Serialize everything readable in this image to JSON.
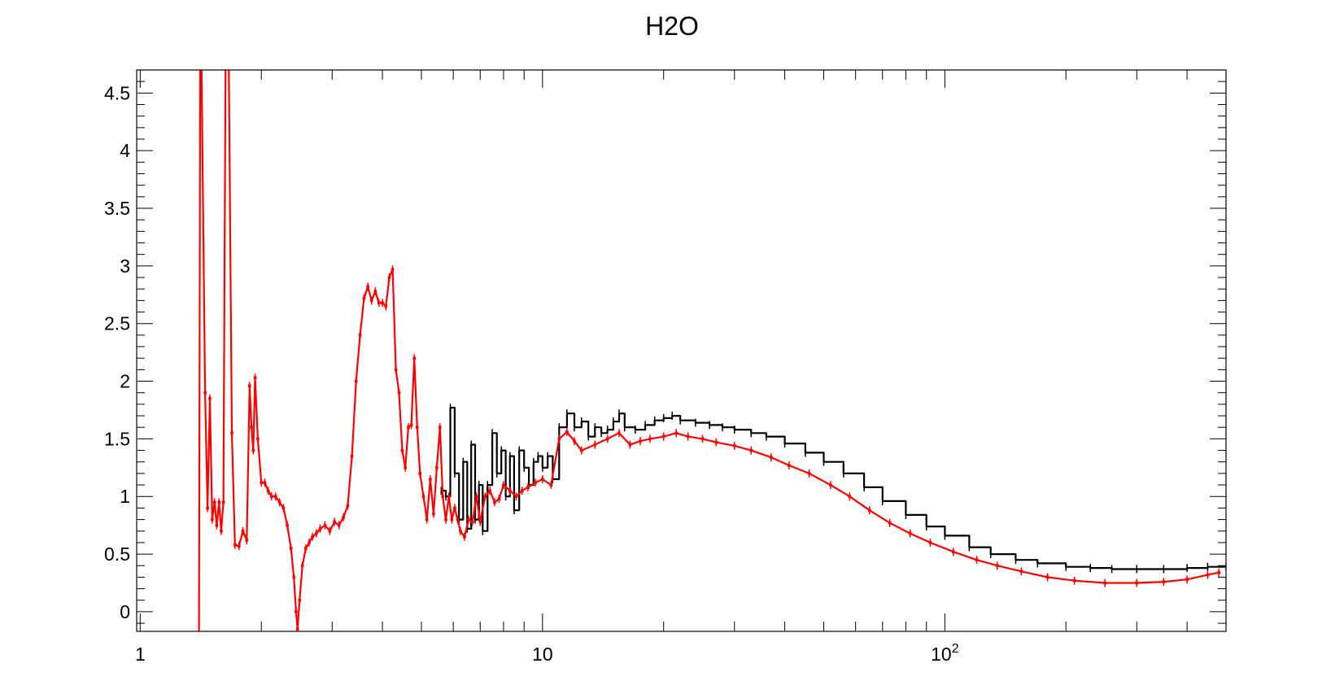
{
  "chart_data": {
    "type": "line",
    "title": "H2O",
    "xlabel": "",
    "ylabel": "",
    "xscale": "log",
    "xlim": [
      0.98,
      500
    ],
    "ylim": [
      -0.17,
      4.7
    ],
    "grid": false,
    "x_tick_labels": [
      {
        "value": 1,
        "base": "1",
        "exp": ""
      },
      {
        "value": 10,
        "base": "10",
        "exp": ""
      },
      {
        "value": 100,
        "base": "10",
        "exp": "2"
      }
    ],
    "y_ticks": [
      0,
      0.5,
      1,
      1.5,
      2,
      2.5,
      3,
      3.5,
      4,
      4.5
    ],
    "y_tick_labels": [
      "0",
      "0.5",
      "1",
      "1.5",
      "2",
      "2.5",
      "3",
      "3.5",
      "4",
      "4.5"
    ],
    "series": [
      {
        "color": "#000000",
        "style": "step",
        "points": [
          [
            5.6,
            1.05
          ],
          [
            5.75,
            1.0
          ],
          [
            5.9,
            1.77
          ],
          [
            6.05,
            1.2
          ],
          [
            6.2,
            0.8
          ],
          [
            6.35,
            1.3
          ],
          [
            6.5,
            0.72
          ],
          [
            6.65,
            1.45
          ],
          [
            6.8,
            0.8
          ],
          [
            6.95,
            1.1
          ],
          [
            7.1,
            0.7
          ],
          [
            7.3,
            1.1
          ],
          [
            7.5,
            1.55
          ],
          [
            7.7,
            1.2
          ],
          [
            7.9,
            1.4
          ],
          [
            8.1,
            1.0
          ],
          [
            8.3,
            1.35
          ],
          [
            8.5,
            0.88
          ],
          [
            8.75,
            1.4
          ],
          [
            9.0,
            1.25
          ],
          [
            9.25,
            1.1
          ],
          [
            9.5,
            1.3
          ],
          [
            9.75,
            1.35
          ],
          [
            10.0,
            1.25
          ],
          [
            10.3,
            1.35
          ],
          [
            10.6,
            1.15
          ],
          [
            11.0,
            1.6
          ],
          [
            11.5,
            1.72
          ],
          [
            12.0,
            1.6
          ],
          [
            12.5,
            1.65
          ],
          [
            13.0,
            1.52
          ],
          [
            13.5,
            1.6
          ],
          [
            14.0,
            1.55
          ],
          [
            14.5,
            1.58
          ],
          [
            15.0,
            1.65
          ],
          [
            15.5,
            1.72
          ],
          [
            16.0,
            1.6
          ],
          [
            17.0,
            1.58
          ],
          [
            18.0,
            1.62
          ],
          [
            19.0,
            1.66
          ],
          [
            20.0,
            1.68
          ],
          [
            21.0,
            1.7
          ],
          [
            22.0,
            1.66
          ],
          [
            24.0,
            1.64
          ],
          [
            26.0,
            1.62
          ],
          [
            28.0,
            1.6
          ],
          [
            30.0,
            1.58
          ],
          [
            33.0,
            1.55
          ],
          [
            36.0,
            1.52
          ],
          [
            40.0,
            1.46
          ],
          [
            45.0,
            1.38
          ],
          [
            50.0,
            1.3
          ],
          [
            56.0,
            1.2
          ],
          [
            63.0,
            1.08
          ],
          [
            70.0,
            0.96
          ],
          [
            80.0,
            0.84
          ],
          [
            90.0,
            0.74
          ],
          [
            100.0,
            0.66
          ],
          [
            115.0,
            0.56
          ],
          [
            130.0,
            0.5
          ],
          [
            150.0,
            0.45
          ],
          [
            170.0,
            0.42
          ],
          [
            200.0,
            0.39
          ],
          [
            230.0,
            0.38
          ],
          [
            260.0,
            0.37
          ],
          [
            300.0,
            0.37
          ],
          [
            350.0,
            0.37
          ],
          [
            400.0,
            0.38
          ],
          [
            450.0,
            0.39
          ],
          [
            500.0,
            0.39
          ]
        ]
      },
      {
        "color": "#ff0000",
        "style": "line-markers",
        "points": [
          [
            1.4,
            -0.2
          ],
          [
            1.41,
            4.8
          ],
          [
            1.42,
            4.8
          ],
          [
            1.45,
            1.9
          ],
          [
            1.47,
            0.9
          ],
          [
            1.49,
            1.85
          ],
          [
            1.51,
            0.8
          ],
          [
            1.53,
            0.95
          ],
          [
            1.55,
            0.75
          ],
          [
            1.57,
            0.95
          ],
          [
            1.59,
            0.7
          ],
          [
            1.61,
            0.95
          ],
          [
            1.63,
            4.8
          ],
          [
            1.66,
            4.8
          ],
          [
            1.69,
            1.55
          ],
          [
            1.72,
            0.58
          ],
          [
            1.76,
            0.57
          ],
          [
            1.8,
            0.7
          ],
          [
            1.84,
            0.62
          ],
          [
            1.87,
            1.96
          ],
          [
            1.89,
            1.6
          ],
          [
            1.91,
            1.4
          ],
          [
            1.93,
            2.03
          ],
          [
            1.96,
            1.5
          ],
          [
            2.0,
            1.12
          ],
          [
            2.04,
            1.12
          ],
          [
            2.08,
            1.05
          ],
          [
            2.12,
            1.0
          ],
          [
            2.17,
            1.0
          ],
          [
            2.22,
            0.95
          ],
          [
            2.27,
            0.9
          ],
          [
            2.32,
            0.75
          ],
          [
            2.37,
            0.55
          ],
          [
            2.41,
            0.3
          ],
          [
            2.44,
            0.0
          ],
          [
            2.46,
            -0.15
          ],
          [
            2.49,
            0.1
          ],
          [
            2.53,
            0.4
          ],
          [
            2.58,
            0.55
          ],
          [
            2.63,
            0.6
          ],
          [
            2.68,
            0.65
          ],
          [
            2.74,
            0.68
          ],
          [
            2.8,
            0.72
          ],
          [
            2.88,
            0.75
          ],
          [
            2.96,
            0.7
          ],
          [
            3.04,
            0.78
          ],
          [
            3.12,
            0.75
          ],
          [
            3.2,
            0.82
          ],
          [
            3.28,
            0.92
          ],
          [
            3.36,
            1.35
          ],
          [
            3.44,
            2.0
          ],
          [
            3.52,
            2.4
          ],
          [
            3.6,
            2.72
          ],
          [
            3.68,
            2.82
          ],
          [
            3.76,
            2.7
          ],
          [
            3.84,
            2.78
          ],
          [
            3.92,
            2.68
          ],
          [
            4.0,
            2.68
          ],
          [
            4.08,
            2.65
          ],
          [
            4.16,
            2.9
          ],
          [
            4.24,
            2.97
          ],
          [
            4.32,
            2.1
          ],
          [
            4.4,
            1.9
          ],
          [
            4.48,
            1.4
          ],
          [
            4.56,
            1.25
          ],
          [
            4.64,
            1.6
          ],
          [
            4.72,
            1.62
          ],
          [
            4.8,
            2.2
          ],
          [
            4.88,
            1.6
          ],
          [
            4.96,
            1.2
          ],
          [
            5.06,
            1.0
          ],
          [
            5.16,
            0.8
          ],
          [
            5.26,
            1.15
          ],
          [
            5.36,
            0.85
          ],
          [
            5.46,
            1.25
          ],
          [
            5.56,
            1.6
          ],
          [
            5.65,
            1.0
          ],
          [
            5.75,
            0.8
          ],
          [
            5.85,
            1.0
          ],
          [
            5.95,
            0.8
          ],
          [
            6.05,
            0.9
          ],
          [
            6.15,
            0.8
          ],
          [
            6.25,
            0.7
          ],
          [
            6.4,
            0.65
          ],
          [
            6.55,
            0.8
          ],
          [
            6.7,
            0.78
          ],
          [
            6.85,
            1.0
          ],
          [
            7.0,
            0.78
          ],
          [
            7.2,
            1.0
          ],
          [
            7.4,
            1.05
          ],
          [
            7.6,
            0.95
          ],
          [
            7.8,
            0.98
          ],
          [
            8.0,
            1.1
          ],
          [
            8.3,
            1.05
          ],
          [
            8.6,
            1.0
          ],
          [
            8.9,
            1.05
          ],
          [
            9.2,
            1.08
          ],
          [
            9.6,
            1.12
          ],
          [
            10.0,
            1.15
          ],
          [
            10.5,
            1.1
          ],
          [
            11.0,
            1.5
          ],
          [
            11.5,
            1.56
          ],
          [
            12.0,
            1.48
          ],
          [
            12.5,
            1.4
          ],
          [
            13.5,
            1.45
          ],
          [
            14.5,
            1.5
          ],
          [
            15.5,
            1.55
          ],
          [
            16.5,
            1.45
          ],
          [
            17.5,
            1.48
          ],
          [
            18.5,
            1.5
          ],
          [
            20.0,
            1.52
          ],
          [
            21.5,
            1.55
          ],
          [
            23.0,
            1.52
          ],
          [
            25.0,
            1.5
          ],
          [
            27.0,
            1.47
          ],
          [
            30.0,
            1.44
          ],
          [
            33.0,
            1.4
          ],
          [
            37.0,
            1.34
          ],
          [
            41.0,
            1.27
          ],
          [
            46.0,
            1.2
          ],
          [
            52.0,
            1.1
          ],
          [
            58.0,
            1.0
          ],
          [
            65.0,
            0.88
          ],
          [
            73.0,
            0.77
          ],
          [
            82.0,
            0.68
          ],
          [
            92.0,
            0.6
          ],
          [
            105.0,
            0.52
          ],
          [
            120.0,
            0.45
          ],
          [
            135.0,
            0.4
          ],
          [
            155.0,
            0.35
          ],
          [
            180.0,
            0.3
          ],
          [
            210.0,
            0.27
          ],
          [
            250.0,
            0.25
          ],
          [
            300.0,
            0.25
          ],
          [
            350.0,
            0.26
          ],
          [
            400.0,
            0.28
          ],
          [
            450.0,
            0.32
          ],
          [
            480.0,
            0.34
          ]
        ]
      }
    ]
  }
}
